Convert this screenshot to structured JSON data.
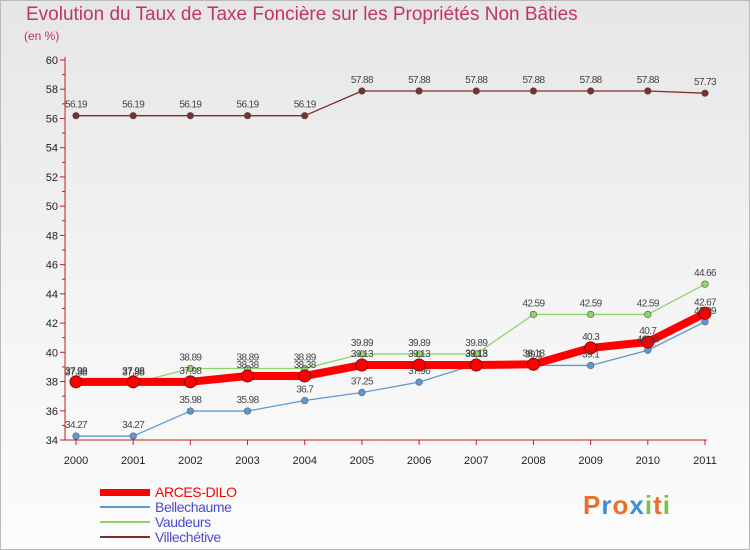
{
  "header": {
    "title": "Evolution du Taux de Taxe Foncière sur les Propriétés Non Bâties",
    "subtitle": "(en %)"
  },
  "brand": {
    "letters": [
      "P",
      "r",
      "o",
      "x",
      "i",
      "t",
      "i"
    ],
    "colors": [
      "#e8702a",
      "#3f8fd2",
      "#e8702a",
      "#3f8fd2",
      "#7fc241",
      "#e8702a",
      "#7fc241"
    ]
  },
  "chart_data": {
    "type": "line",
    "title": "Evolution du Taux de Taxe Foncière sur les Propriétés Non Bâties",
    "ylabel": "(en %)",
    "xlabel": "",
    "x": [
      "2000",
      "2001",
      "2002",
      "2003",
      "2004",
      "2005",
      "2006",
      "2007",
      "2008",
      "2009",
      "2010",
      "2011"
    ],
    "ylim": [
      34,
      60
    ],
    "yticks": [
      "34",
      "36",
      "38",
      "40",
      "42",
      "44",
      "46",
      "48",
      "50",
      "52",
      "54",
      "56",
      "58",
      "60"
    ],
    "grid": false,
    "legend_position": "bottom-left",
    "series": [
      {
        "name": "Villechétive",
        "color": "#7a2e2e",
        "values": [
          56.19,
          56.19,
          56.19,
          56.19,
          56.19,
          57.88,
          57.88,
          57.88,
          57.88,
          57.88,
          57.88,
          57.73
        ],
        "labels": [
          "56.19",
          "56.19",
          "56.19",
          "56.19",
          "56.19",
          "57.88",
          "57.88",
          "57.88",
          "57.88",
          "57.88",
          "57.88",
          "57.73"
        ]
      },
      {
        "name": "Vaudeurs",
        "color": "#8fd36a",
        "values": [
          37.88,
          37.88,
          38.89,
          38.89,
          38.89,
          39.89,
          39.89,
          39.89,
          42.59,
          42.59,
          42.59,
          44.66
        ],
        "labels": [
          "37.88",
          "37.88",
          "38.89",
          "38.89",
          "38.89",
          "39.89",
          "39.89",
          "39.89",
          "42.59",
          "42.59",
          "42.59",
          "44.66"
        ]
      },
      {
        "name": "Bellechaume",
        "color": "#5b9bd5",
        "values": [
          34.27,
          34.27,
          35.98,
          35.98,
          36.7,
          37.25,
          37.96,
          39.18,
          39.1,
          39.1,
          40.14,
          42.09
        ],
        "labels": [
          "34.27",
          "34.27",
          "35.98",
          "35.98",
          "36.7",
          "37.25",
          "37.96",
          "39.18",
          "39.1",
          "39.1",
          "40.14",
          "42.09"
        ]
      },
      {
        "name": "ARCES-DILO",
        "color": "#ff0000",
        "values": [
          37.98,
          37.98,
          37.98,
          38.38,
          38.38,
          39.13,
          39.13,
          39.13,
          39.18,
          40.3,
          40.7,
          42.67
        ],
        "labels": [
          "37.98",
          "37.98",
          "37.98",
          "38.38",
          "38.38",
          "39.13",
          "39.13",
          "39.13",
          "39.18",
          "40.3",
          "40.7",
          "42.67"
        ]
      }
    ],
    "legend": [
      {
        "name": "ARCES-DILO",
        "color": "#ff0000"
      },
      {
        "name": "Bellechaume",
        "color": "#5b9bd5"
      },
      {
        "name": "Vaudeurs",
        "color": "#8fd36a"
      },
      {
        "name": "Villechétive",
        "color": "#7a2e2e"
      }
    ]
  }
}
